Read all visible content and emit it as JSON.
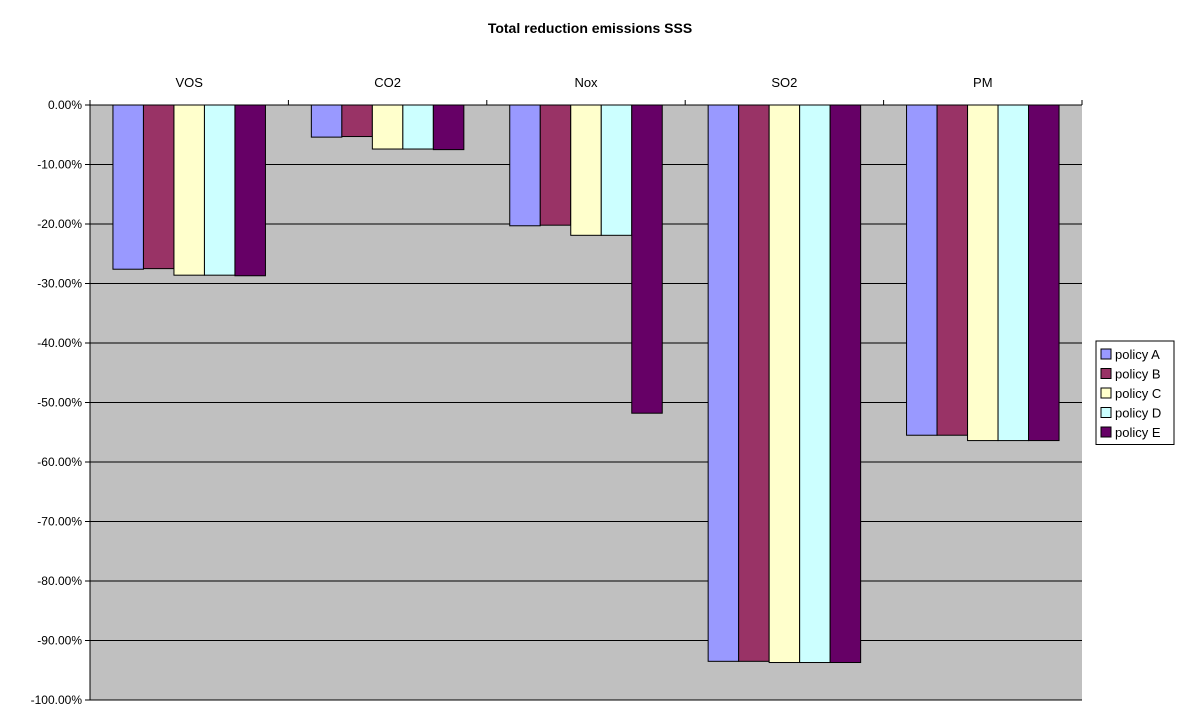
{
  "chart_data": {
    "type": "bar",
    "title": "Total reduction emissions SSS",
    "xlabel": "",
    "ylabel": "",
    "categories": [
      "VOS",
      "CO2",
      "Nox",
      "SO2",
      "PM"
    ],
    "ylim": [
      -1.0,
      0.0
    ],
    "y_ticks": [
      "0.00%",
      "-10.00%",
      "-20.00%",
      "-30.00%",
      "-40.00%",
      "-50.00%",
      "-60.00%",
      "-70.00%",
      "-80.00%",
      "-90.00%",
      "-100.00%"
    ],
    "y_tick_values": [
      0.0,
      -0.1,
      -0.2,
      -0.3,
      -0.4,
      -0.5,
      -0.6,
      -0.7,
      -0.8,
      -0.9,
      -1.0
    ],
    "grid": true,
    "legend_position": "right",
    "plot_background": "#C0C0C0",
    "series": [
      {
        "name": "policy A",
        "color": "#9999FF",
        "values": [
          -0.276,
          -0.054,
          -0.203,
          -0.935,
          -0.555
        ]
      },
      {
        "name": "policy B",
        "color": "#993366",
        "values": [
          -0.275,
          -0.053,
          -0.202,
          -0.935,
          -0.555
        ]
      },
      {
        "name": "policy C",
        "color": "#FFFFCC",
        "values": [
          -0.286,
          -0.074,
          -0.219,
          -0.937,
          -0.564
        ]
      },
      {
        "name": "policy D",
        "color": "#CCFFFF",
        "values": [
          -0.286,
          -0.074,
          -0.219,
          -0.937,
          -0.564
        ]
      },
      {
        "name": "policy E",
        "color": "#660066",
        "values": [
          -0.287,
          -0.075,
          -0.518,
          -0.937,
          -0.564
        ]
      }
    ]
  }
}
